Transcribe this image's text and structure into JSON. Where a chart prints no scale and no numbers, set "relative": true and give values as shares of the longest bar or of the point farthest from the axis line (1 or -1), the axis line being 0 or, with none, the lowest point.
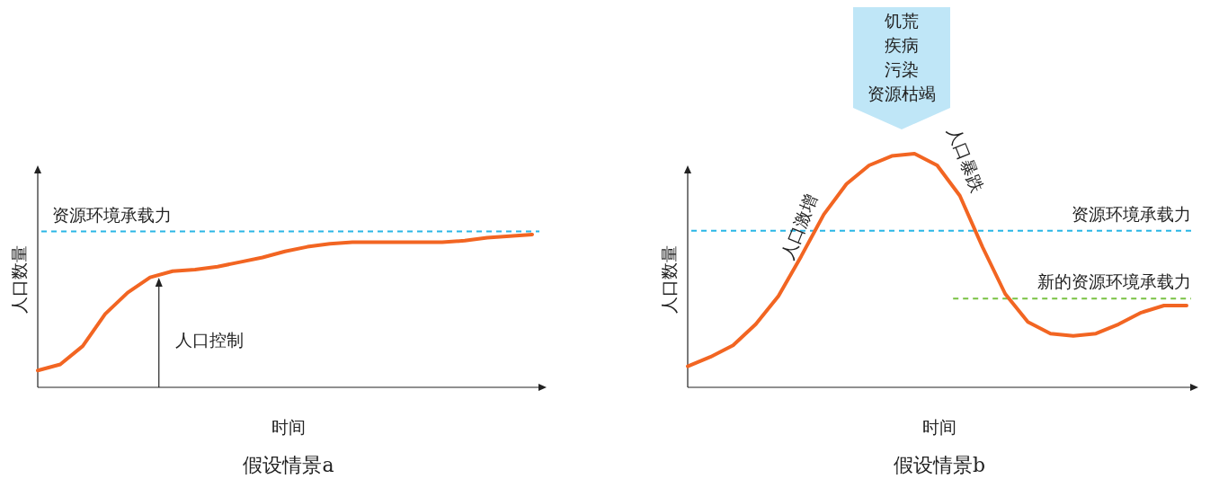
{
  "chart_data": [
    {
      "type": "line",
      "title": "假设情景a",
      "xlabel": "时间",
      "ylabel": "人口数量",
      "relative": true,
      "categories": [
        null,
        null,
        null,
        null,
        null,
        null,
        null,
        null,
        null,
        null,
        null,
        null,
        null,
        null,
        null,
        null,
        null,
        null,
        null,
        null,
        null,
        null,
        null
      ],
      "series": [
        {
          "color": "#f26522",
          "values": [
            0.11,
            0.15,
            0.27,
            0.48,
            0.62,
            0.72,
            0.76,
            0.77,
            0.79,
            0.82,
            0.85,
            0.89,
            0.92,
            0.94,
            0.95,
            0.95,
            0.95,
            0.95,
            0.95,
            0.96,
            0.98,
            0.99,
            1.0
          ]
        }
      ],
      "ref_lines": [
        {
          "axis": "y",
          "value": 1.02,
          "label": "资源环境承载力",
          "color": "#29b6e6",
          "line_style": "dashed"
        }
      ],
      "annotations": [
        "人口控制"
      ]
    },
    {
      "type": "line",
      "title": "假设情景b",
      "xlabel": "时间",
      "ylabel": "人口数量",
      "relative": true,
      "categories": [
        null,
        null,
        null,
        null,
        null,
        null,
        null,
        null,
        null,
        null,
        null,
        null,
        null,
        null,
        null,
        null,
        null,
        null,
        null,
        null,
        null,
        null,
        null
      ],
      "series": [
        {
          "color": "#f26522",
          "values": [
            0.09,
            0.13,
            0.18,
            0.27,
            0.39,
            0.56,
            0.74,
            0.87,
            0.95,
            0.99,
            1.0,
            0.95,
            0.82,
            0.6,
            0.4,
            0.28,
            0.23,
            0.22,
            0.23,
            0.27,
            0.32,
            0.35,
            0.35
          ]
        }
      ],
      "ref_lines": [
        {
          "axis": "y",
          "value": 0.67,
          "label": "资源环境承载力",
          "color": "#29b6e6",
          "line_style": "dashed"
        },
        {
          "axis": "y",
          "value": 0.38,
          "label": "新的资源环境承载力",
          "color": "#7ac143",
          "line_style": "dashed"
        }
      ],
      "annotations": [
        "饥荒",
        "疾病",
        "污染",
        "资源枯竭",
        "人口激增",
        "人口暴跌"
      ]
    }
  ]
}
